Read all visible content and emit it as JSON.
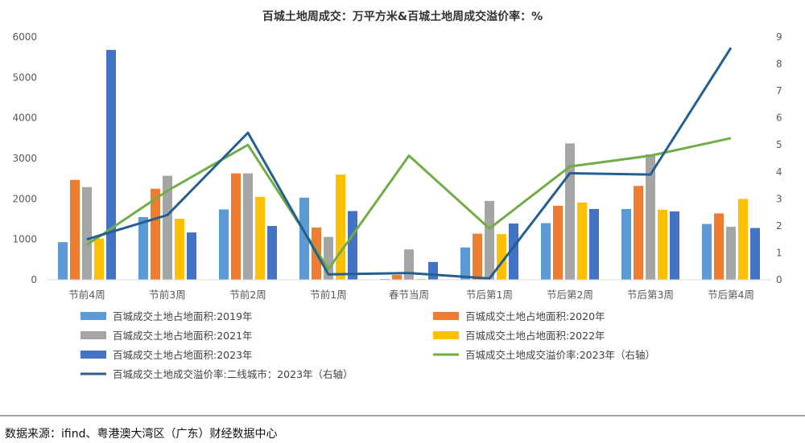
{
  "chart_data": {
    "type": "bar",
    "title": "百城土地周成交：万平方米&百城土地周成交溢价率：%",
    "categories": [
      "节前4周",
      "节前3周",
      "节前2周",
      "节前1周",
      "春节当周",
      "节后第1周",
      "节后第2周",
      "节后第3周",
      "节后第4周"
    ],
    "y_left": {
      "ylim": [
        0,
        6000
      ],
      "ticks": [
        "0",
        "1000",
        "2000",
        "3000",
        "4000",
        "5000",
        "6000"
      ]
    },
    "y_right": {
      "ylim": [
        0,
        9
      ],
      "ticks": [
        "0",
        "1",
        "2",
        "3",
        "4",
        "5",
        "6",
        "7",
        "8",
        "9"
      ]
    },
    "series": [
      {
        "name": "百城成交土地占地面积:2019年",
        "type": "bar",
        "color": "#5B9BD5",
        "values": [
          930,
          1550,
          1740,
          2030,
          20,
          800,
          1400,
          1750,
          1380
        ]
      },
      {
        "name": "百城成交土地占地面积:2020年",
        "type": "bar",
        "color": "#ED7D31",
        "values": [
          2470,
          2250,
          2630,
          1290,
          120,
          1140,
          1830,
          2320,
          1640
        ]
      },
      {
        "name": "百城成交土地占地面积:2021年",
        "type": "bar",
        "color": "#A5A5A5",
        "values": [
          2290,
          2570,
          2630,
          1060,
          750,
          1950,
          3370,
          3100,
          1310
        ]
      },
      {
        "name": "百城成交土地占地面积:2022年",
        "type": "bar",
        "color": "#FFC000",
        "values": [
          1020,
          1510,
          2050,
          2600,
          20,
          1130,
          1910,
          1730,
          2000
        ]
      },
      {
        "name": "百城成交土地占地面积:2023年",
        "type": "bar",
        "color": "#4472C4",
        "values": [
          5680,
          1170,
          1330,
          1700,
          440,
          1390,
          1750,
          1690,
          1280
        ]
      },
      {
        "name": "百城成交土地成交溢价率:2023年（右轴）",
        "type": "line",
        "axis": "right",
        "color": "#70AD47",
        "values": [
          1.3,
          3.3,
          5.0,
          0.4,
          4.6,
          1.9,
          4.2,
          4.6,
          5.25
        ]
      },
      {
        "name": "百城成交土地成交溢价率:二线城市：2023年（右轴）",
        "type": "line",
        "axis": "right",
        "color": "#255E91",
        "values": [
          1.5,
          2.4,
          5.45,
          0.2,
          0.25,
          0.05,
          3.95,
          3.9,
          8.6
        ]
      }
    ],
    "grid": false,
    "legend_position": "bottom"
  },
  "source_note": "数据来源：ifind、粤港澳大湾区（广东）财经数据中心"
}
